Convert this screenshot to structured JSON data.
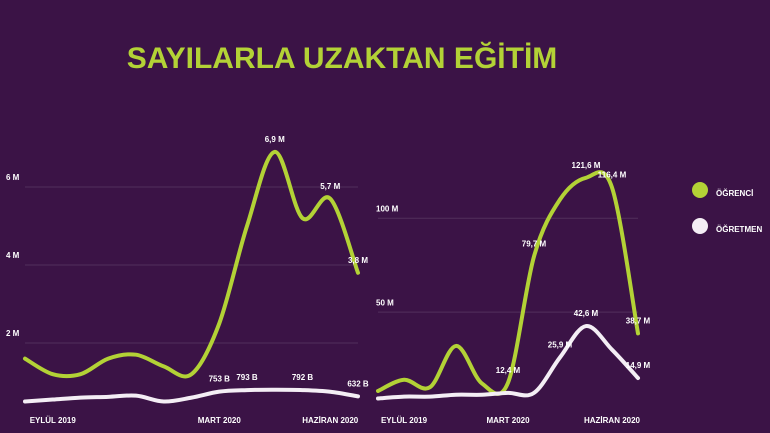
{
  "title": "SAYILARLA UZAKTAN EĞİTİM",
  "chart_data": [
    {
      "type": "line",
      "categories": [
        null,
        "EYLÜL 2019",
        null,
        null,
        null,
        null,
        null,
        "MART 2020",
        null,
        null,
        null,
        "HAZİRAN 2020",
        null
      ],
      "ylim": [
        0,
        7
      ],
      "yticks": [
        {
          "value": 2,
          "label": "2 M"
        },
        {
          "value": 4,
          "label": "4 M"
        },
        {
          "value": 6,
          "label": "6 M"
        }
      ],
      "series": [
        {
          "name": "ÖĞRENCİ",
          "color": "#b3d236",
          "values": [
            1.6,
            1.2,
            1.2,
            1.6,
            1.7,
            1.4,
            1.2,
            2.5,
            5.0,
            6.9,
            5.2,
            5.7,
            3.8
          ],
          "value_labels": [
            null,
            null,
            null,
            null,
            null,
            null,
            null,
            null,
            null,
            "6,9 M",
            null,
            "5,7 M",
            "3,8 M"
          ]
        },
        {
          "name": "ÖĞRETMEN",
          "color": "#f4eef5",
          "values": [
            0.5,
            0.55,
            0.6,
            0.62,
            0.65,
            0.5,
            0.6,
            0.753,
            0.793,
            0.8,
            0.792,
            0.75,
            0.632
          ],
          "value_labels": [
            null,
            null,
            null,
            null,
            null,
            null,
            null,
            "753 B",
            "793 B",
            null,
            "792 B",
            null,
            "632 B"
          ]
        }
      ]
    },
    {
      "type": "line",
      "categories": [
        null,
        "EYLÜL 2019",
        null,
        null,
        null,
        "MART 2020",
        null,
        null,
        null,
        "HAZİRAN 2020",
        null
      ],
      "ylim": [
        0,
        130
      ],
      "yticks": [
        {
          "value": 50,
          "label": "50 M"
        },
        {
          "value": 100,
          "label": "100 M"
        }
      ],
      "series": [
        {
          "name": "ÖĞRENCİ",
          "color": "#b3d236",
          "values": [
            8,
            14,
            10,
            32,
            12,
            12.4,
            79.7,
            110,
            121.6,
            116.4,
            38.7
          ],
          "value_labels": [
            null,
            null,
            null,
            null,
            null,
            "12,4 M",
            "79,7 M",
            null,
            "121,6 M",
            "116,4 M",
            "38,7 M"
          ]
        },
        {
          "name": "ÖĞRETMEN",
          "color": "#f4eef5",
          "values": [
            4,
            5,
            5,
            6,
            6,
            7,
            7,
            25.9,
            42.6,
            30,
            14.9
          ],
          "value_labels": [
            null,
            null,
            null,
            null,
            null,
            null,
            null,
            "25,9 M",
            "42,6 M",
            null,
            "14,9 M"
          ]
        }
      ]
    }
  ]
}
